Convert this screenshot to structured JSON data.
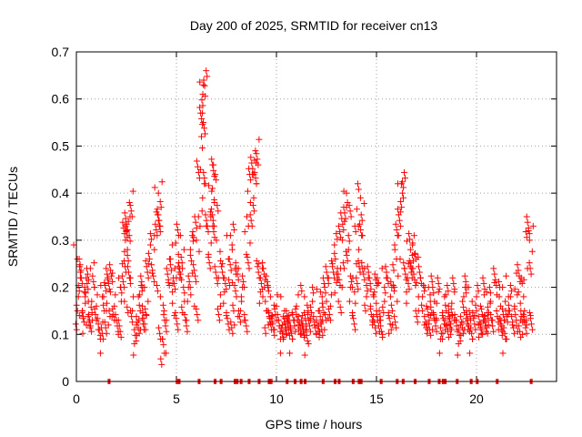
{
  "chart_data": {
    "type": "scatter",
    "title": "Day 200 of 2025, SRMTID for receiver cn13",
    "xlabel": "GPS time / hours",
    "ylabel": "SRMTID / TECUs",
    "xlim": [
      0,
      24
    ],
    "ylim": [
      0,
      0.7
    ],
    "xticks": [
      0,
      5,
      10,
      15,
      20
    ],
    "xtick_labels": [
      "0",
      "5",
      "10",
      "15",
      "20"
    ],
    "yticks": [
      0,
      0.1,
      0.2,
      0.3,
      0.4,
      0.5,
      0.6,
      0.7
    ],
    "ytick_labels": [
      "0",
      "0.1",
      "0.2",
      "0.3",
      "0.4",
      "0.5",
      "0.6",
      "0.7"
    ],
    "grid": true,
    "marker": "+",
    "series": [
      {
        "name": "SRMTID",
        "color": "#ff0000",
        "points": [
          [
            0.05,
            0.26
          ],
          [
            0.1,
            0.18
          ],
          [
            0.15,
            0.14
          ],
          [
            0.2,
            0.22
          ],
          [
            0.3,
            0.15
          ],
          [
            0.4,
            0.19
          ],
          [
            0.5,
            0.12
          ],
          [
            0.6,
            0.17
          ],
          [
            0.7,
            0.24
          ],
          [
            0.8,
            0.13
          ],
          [
            0.9,
            0.2
          ],
          [
            1.0,
            0.16
          ],
          [
            1.1,
            0.11
          ],
          [
            1.2,
            0.09
          ],
          [
            1.3,
            0.18
          ],
          [
            1.4,
            0.21
          ],
          [
            1.5,
            0.15
          ],
          [
            1.6,
            0.12
          ],
          [
            1.7,
            0.19
          ],
          [
            1.8,
            0.23
          ],
          [
            1.9,
            0.16
          ],
          [
            2.0,
            0.13
          ],
          [
            2.1,
            0.1
          ],
          [
            2.2,
            0.2
          ],
          [
            2.3,
            0.25
          ],
          [
            2.4,
            0.17
          ],
          [
            2.45,
            0.3
          ],
          [
            2.5,
            0.32
          ],
          [
            2.55,
            0.28
          ],
          [
            2.6,
            0.34
          ],
          [
            2.65,
            0.38
          ],
          [
            2.7,
            0.22
          ],
          [
            2.8,
            0.15
          ],
          [
            2.9,
            0.08
          ],
          [
            3.0,
            0.12
          ],
          [
            3.1,
            0.18
          ],
          [
            3.2,
            0.11
          ],
          [
            3.3,
            0.16
          ],
          [
            3.4,
            0.2
          ],
          [
            3.5,
            0.14
          ],
          [
            3.6,
            0.25
          ],
          [
            3.7,
            0.29
          ],
          [
            3.8,
            0.23
          ],
          [
            3.9,
            0.31
          ],
          [
            4.0,
            0.36
          ],
          [
            4.1,
            0.4
          ],
          [
            4.15,
            0.33
          ],
          [
            4.2,
            0.18
          ],
          [
            4.3,
            0.09
          ],
          [
            4.4,
            0.06
          ],
          [
            4.5,
            0.13
          ],
          [
            4.6,
            0.21
          ],
          [
            4.7,
            0.26
          ],
          [
            4.8,
            0.19
          ],
          [
            4.9,
            0.14
          ],
          [
            5.0,
            0.22
          ],
          [
            5.1,
            0.27
          ],
          [
            5.2,
            0.31
          ],
          [
            5.3,
            0.24
          ],
          [
            5.4,
            0.17
          ],
          [
            5.5,
            0.13
          ],
          [
            5.6,
            0.2
          ],
          [
            5.7,
            0.28
          ],
          [
            5.8,
            0.23
          ],
          [
            5.9,
            0.16
          ],
          [
            6.0,
            0.3
          ],
          [
            6.1,
            0.35
          ],
          [
            6.2,
            0.45
          ],
          [
            6.25,
            0.52
          ],
          [
            6.3,
            0.57
          ],
          [
            6.32,
            0.61
          ],
          [
            6.35,
            0.63
          ],
          [
            6.4,
            0.42
          ],
          [
            6.5,
            0.33
          ],
          [
            6.6,
            0.27
          ],
          [
            6.7,
            0.36
          ],
          [
            6.8,
            0.41
          ],
          [
            6.85,
            0.46
          ],
          [
            6.9,
            0.38
          ],
          [
            7.0,
            0.3
          ],
          [
            7.1,
            0.22
          ],
          [
            7.2,
            0.16
          ],
          [
            7.3,
            0.25
          ],
          [
            7.4,
            0.19
          ],
          [
            7.5,
            0.14
          ],
          [
            7.6,
            0.26
          ],
          [
            7.7,
            0.31
          ],
          [
            7.8,
            0.21
          ],
          [
            7.9,
            0.12
          ],
          [
            8.0,
            0.18
          ],
          [
            8.1,
            0.24
          ],
          [
            8.2,
            0.15
          ],
          [
            8.3,
            0.2
          ],
          [
            8.4,
            0.13
          ],
          [
            8.5,
            0.27
          ],
          [
            8.6,
            0.33
          ],
          [
            8.7,
            0.38
          ],
          [
            8.8,
            0.44
          ],
          [
            8.9,
            0.47
          ],
          [
            8.95,
            0.49
          ],
          [
            9.0,
            0.42
          ],
          [
            9.1,
            0.25
          ],
          [
            9.2,
            0.19
          ],
          [
            9.3,
            0.24
          ],
          [
            9.4,
            0.2
          ],
          [
            9.5,
            0.15
          ],
          [
            9.6,
            0.12
          ],
          [
            9.7,
            0.18
          ],
          [
            9.8,
            0.14
          ],
          [
            9.9,
            0.11
          ],
          [
            10.0,
            0.16
          ],
          [
            10.1,
            0.13
          ],
          [
            10.2,
            0.09
          ],
          [
            10.3,
            0.12
          ],
          [
            10.4,
            0.15
          ],
          [
            10.5,
            0.1
          ],
          [
            10.6,
            0.14
          ],
          [
            10.7,
            0.11
          ],
          [
            10.8,
            0.09
          ],
          [
            10.9,
            0.13
          ],
          [
            11.0,
            0.16
          ],
          [
            11.1,
            0.12
          ],
          [
            11.2,
            0.1
          ],
          [
            11.3,
            0.14
          ],
          [
            11.4,
            0.18
          ],
          [
            11.5,
            0.11
          ],
          [
            11.6,
            0.08
          ],
          [
            11.7,
            0.13
          ],
          [
            11.8,
            0.17
          ],
          [
            11.9,
            0.12
          ],
          [
            12.0,
            0.1
          ],
          [
            12.1,
            0.15
          ],
          [
            12.2,
            0.19
          ],
          [
            12.3,
            0.13
          ],
          [
            12.4,
            0.11
          ],
          [
            12.5,
            0.17
          ],
          [
            12.6,
            0.22
          ],
          [
            12.7,
            0.16
          ],
          [
            12.8,
            0.25
          ],
          [
            12.9,
            0.29
          ],
          [
            13.0,
            0.21
          ],
          [
            13.1,
            0.17
          ],
          [
            13.2,
            0.24
          ],
          [
            13.3,
            0.3
          ],
          [
            13.4,
            0.34
          ],
          [
            13.5,
            0.37
          ],
          [
            13.55,
            0.38
          ],
          [
            13.6,
            0.28
          ],
          [
            13.7,
            0.2
          ],
          [
            13.8,
            0.14
          ],
          [
            13.9,
            0.19
          ],
          [
            14.0,
            0.25
          ],
          [
            14.1,
            0.33
          ],
          [
            14.2,
            0.39
          ],
          [
            14.3,
            0.31
          ],
          [
            14.4,
            0.24
          ],
          [
            14.5,
            0.18
          ],
          [
            14.6,
            0.22
          ],
          [
            14.7,
            0.16
          ],
          [
            14.8,
            0.12
          ],
          [
            14.9,
            0.19
          ],
          [
            15.0,
            0.15
          ],
          [
            15.1,
            0.21
          ],
          [
            15.2,
            0.13
          ],
          [
            15.3,
            0.1
          ],
          [
            15.4,
            0.17
          ],
          [
            15.5,
            0.22
          ],
          [
            15.6,
            0.14
          ],
          [
            15.7,
            0.18
          ],
          [
            15.8,
            0.12
          ],
          [
            15.9,
            0.2
          ],
          [
            16.0,
            0.26
          ],
          [
            16.1,
            0.31
          ],
          [
            16.2,
            0.36
          ],
          [
            16.25,
            0.42
          ],
          [
            16.3,
            0.4
          ],
          [
            16.4,
            0.24
          ],
          [
            16.5,
            0.19
          ],
          [
            16.6,
            0.25
          ],
          [
            16.7,
            0.28
          ],
          [
            16.8,
            0.29
          ],
          [
            16.9,
            0.27
          ],
          [
            17.0,
            0.21
          ],
          [
            17.1,
            0.15
          ],
          [
            17.2,
            0.22
          ],
          [
            17.3,
            0.18
          ],
          [
            17.4,
            0.12
          ],
          [
            17.5,
            0.16
          ],
          [
            17.6,
            0.2
          ],
          [
            17.7,
            0.14
          ],
          [
            17.8,
            0.11
          ],
          [
            17.9,
            0.17
          ],
          [
            18.0,
            0.13
          ],
          [
            18.1,
            0.19
          ],
          [
            18.2,
            0.09
          ],
          [
            18.3,
            0.14
          ],
          [
            18.4,
            0.18
          ],
          [
            18.5,
            0.12
          ],
          [
            18.6,
            0.16
          ],
          [
            18.7,
            0.1
          ],
          [
            18.8,
            0.14
          ],
          [
            18.9,
            0.19
          ],
          [
            19.0,
            0.13
          ],
          [
            19.1,
            0.08
          ],
          [
            19.2,
            0.12
          ],
          [
            19.3,
            0.17
          ],
          [
            19.4,
            0.11
          ],
          [
            19.5,
            0.15
          ],
          [
            19.6,
            0.2
          ],
          [
            19.7,
            0.13
          ],
          [
            19.8,
            0.09
          ],
          [
            19.9,
            0.14
          ],
          [
            20.0,
            0.18
          ],
          [
            20.1,
            0.12
          ],
          [
            20.2,
            0.16
          ],
          [
            20.3,
            0.1
          ],
          [
            20.4,
            0.14
          ],
          [
            20.5,
            0.19
          ],
          [
            20.6,
            0.12
          ],
          [
            20.7,
            0.17
          ],
          [
            20.8,
            0.13
          ],
          [
            20.9,
            0.21
          ],
          [
            21.0,
            0.15
          ],
          [
            21.1,
            0.11
          ],
          [
            21.2,
            0.16
          ],
          [
            21.3,
            0.2
          ],
          [
            21.4,
            0.13
          ],
          [
            21.5,
            0.09
          ],
          [
            21.6,
            0.15
          ],
          [
            21.7,
            0.18
          ],
          [
            21.8,
            0.12
          ],
          [
            21.9,
            0.16
          ],
          [
            22.0,
            0.23
          ],
          [
            22.1,
            0.19
          ],
          [
            22.2,
            0.13
          ],
          [
            22.3,
            0.1
          ],
          [
            22.4,
            0.15
          ],
          [
            22.5,
            0.12
          ],
          [
            22.55,
            0.24
          ],
          [
            22.6,
            0.32
          ],
          [
            22.65,
            0.3
          ],
          [
            22.7,
            0.14
          ]
        ]
      }
    ],
    "zero_markers_x": [
      1.6,
      5.0,
      5.1,
      6.1,
      6.9,
      7.2,
      7.9,
      8.0,
      8.2,
      8.6,
      9.1,
      9.6,
      9.7,
      10.5,
      10.9,
      11.2,
      11.4,
      12.3,
      12.9,
      13.1,
      13.8,
      14.1,
      14.2,
      15.2,
      16.0,
      16.3,
      16.9,
      17.6,
      18.1,
      18.3,
      18.4,
      19.0,
      19.7,
      20.0,
      21.0,
      22.7
    ]
  }
}
